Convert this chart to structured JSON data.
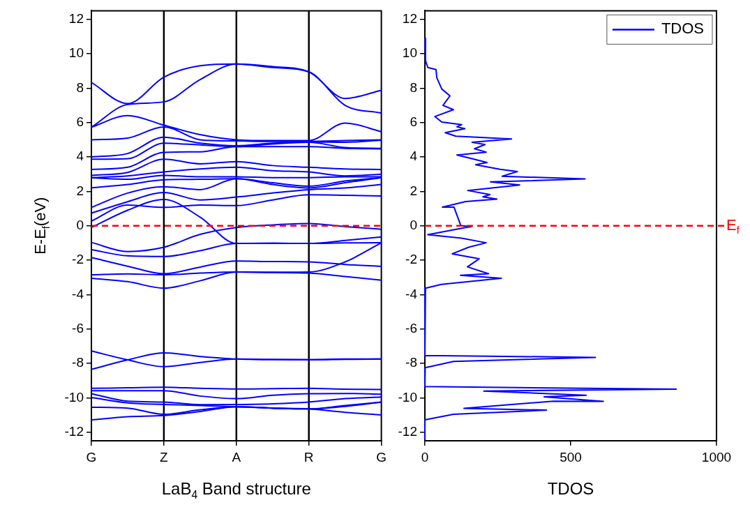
{
  "chart_data": [
    {
      "type": "line",
      "xlabel": "LaB$_{4}$ Band structure",
      "ylabel": "E-E$_{f}$(eV)",
      "categories": [
        "G",
        null,
        "Z",
        null,
        "A",
        null,
        "R",
        null,
        "G"
      ],
      "ylim": [
        -12.5,
        12.5
      ],
      "yticks": [
        -12,
        -10,
        -8,
        -6,
        -4,
        -2,
        0,
        2,
        4,
        6,
        8,
        10,
        12
      ],
      "ref_lines": [
        {
          "axis": "x",
          "value": "Z",
          "color": "#000000"
        },
        {
          "axis": "x",
          "value": "A",
          "color": "#000000"
        },
        {
          "axis": "x",
          "value": "R",
          "color": "#000000"
        },
        {
          "axis": "y",
          "value": 0,
          "color": "#ff0000",
          "line_style": "dashed"
        }
      ],
      "series": [
        {
          "color": "#0000ff",
          "values": [
            -11.29,
            -11.1,
            -11.03,
            -10.8,
            -10.52,
            -10.6,
            -10.65,
            -10.45,
            -10.25
          ]
        },
        {
          "color": "#0000ff",
          "values": [
            -10.55,
            -10.6,
            -10.96,
            -10.7,
            -10.52,
            -10.6,
            -10.65,
            -10.85,
            -10.99
          ]
        },
        {
          "color": "#0000ff",
          "values": [
            -9.99,
            -10.3,
            -10.39,
            -10.45,
            -10.52,
            -10.6,
            -10.65,
            -10.5,
            -10.25
          ]
        },
        {
          "color": "#0000ff",
          "values": [
            -9.76,
            -10.2,
            -10.25,
            -10.4,
            -10.39,
            -10.35,
            -10.25,
            -10.05,
            -9.96
          ]
        },
        {
          "color": "#0000ff",
          "values": [
            -9.59,
            -9.59,
            -9.59,
            -9.9,
            -10.05,
            -9.85,
            -9.76,
            -9.75,
            -9.79
          ]
        },
        {
          "color": "#0000ff",
          "values": [
            -9.45,
            -9.42,
            -9.39,
            -9.45,
            -9.49,
            -9.47,
            -9.45,
            -9.5,
            -9.52
          ]
        },
        {
          "color": "#0000ff",
          "values": [
            -8.35,
            -7.8,
            -7.39,
            -7.6,
            -7.75,
            -7.78,
            -7.79,
            -7.75,
            -7.75
          ]
        },
        {
          "color": "#0000ff",
          "values": [
            -7.28,
            -7.8,
            -8.19,
            -7.95,
            -7.75,
            -7.78,
            -7.79,
            -7.77,
            -7.75
          ]
        },
        {
          "color": "#0000ff",
          "values": [
            -3.05,
            -3.25,
            -3.63,
            -3.2,
            -2.69,
            -2.72,
            -2.75,
            -2.95,
            -3.16
          ]
        },
        {
          "color": "#0000ff",
          "values": [
            -2.85,
            -2.8,
            -2.85,
            -2.75,
            -2.69,
            -2.7,
            -2.69,
            -2.1,
            -0.99
          ]
        },
        {
          "color": "#0000ff",
          "values": [
            -1.85,
            -2.35,
            -2.79,
            -2.4,
            -2.05,
            -2.08,
            -2.1,
            -2.25,
            -2.36
          ]
        },
        {
          "color": "#0000ff",
          "values": [
            -1.39,
            -1.75,
            -1.79,
            -1.45,
            -1.03,
            -1.02,
            -1.03,
            -0.85,
            -0.65
          ]
        },
        {
          "color": "#0000ff",
          "values": [
            -0.97,
            -1.5,
            -1.25,
            -0.5,
            -0.1,
            0.05,
            0.13,
            -0.05,
            -0.2
          ]
        },
        {
          "color": "#0000ff",
          "values": [
            -0.1,
            0.9,
            1.53,
            0.5,
            -1.03,
            -1.02,
            -1.03,
            -1.0,
            -0.99
          ]
        },
        {
          "color": "#0000ff",
          "values": [
            0.27,
            1.2,
            1.07,
            1.2,
            1.17,
            1.5,
            1.8,
            1.77,
            1.73
          ]
        },
        {
          "color": "#0000ff",
          "values": [
            0.73,
            1.4,
            1.93,
            1.5,
            1.67,
            1.9,
            2.1,
            2.2,
            2.4
          ]
        },
        {
          "color": "#0000ff",
          "values": [
            1.07,
            1.9,
            2.27,
            2.1,
            2.73,
            2.4,
            2.2,
            2.5,
            2.8
          ]
        },
        {
          "color": "#0000ff",
          "values": [
            2.2,
            2.4,
            2.67,
            2.7,
            2.73,
            2.5,
            2.3,
            2.6,
            2.8
          ]
        },
        {
          "color": "#0000ff",
          "values": [
            2.8,
            2.7,
            2.93,
            2.85,
            2.85,
            2.8,
            2.8,
            2.85,
            2.85
          ]
        },
        {
          "color": "#0000ff",
          "values": [
            2.8,
            2.9,
            3.13,
            3.3,
            3.4,
            3.2,
            3.13,
            2.9,
            3.0
          ]
        },
        {
          "color": "#0000ff",
          "values": [
            2.93,
            3.1,
            3.87,
            3.6,
            3.73,
            3.5,
            3.4,
            3.3,
            3.27
          ]
        },
        {
          "color": "#0000ff",
          "values": [
            3.27,
            3.4,
            4.27,
            4.3,
            4.6,
            4.6,
            4.6,
            4.5,
            4.47
          ]
        },
        {
          "color": "#0000ff",
          "values": [
            3.87,
            3.9,
            4.8,
            4.7,
            4.6,
            4.75,
            4.85,
            4.55,
            4.5
          ]
        },
        {
          "color": "#0000ff",
          "values": [
            4.0,
            4.2,
            5.15,
            4.8,
            4.65,
            4.8,
            4.87,
            4.85,
            4.97
          ]
        },
        {
          "color": "#0000ff",
          "values": [
            5.0,
            5.1,
            5.75,
            5.0,
            4.93,
            4.9,
            4.9,
            4.95,
            5.0
          ]
        },
        {
          "color": "#0000ff",
          "values": [
            5.73,
            6.4,
            5.85,
            5.3,
            5.0,
            4.95,
            4.95,
            5.97,
            5.47
          ]
        },
        {
          "color": "#0000ff",
          "values": [
            5.73,
            7.05,
            7.2,
            8.5,
            9.4,
            9.2,
            8.95,
            7.0,
            6.55
          ]
        },
        {
          "color": "#0000ff",
          "values": [
            8.33,
            7.1,
            8.64,
            9.3,
            9.4,
            9.25,
            8.95,
            7.4,
            7.87
          ]
        }
      ]
    },
    {
      "type": "line",
      "xlabel": "TDOS",
      "xlim": [
        0,
        1000
      ],
      "xticks": [
        0,
        500,
        1000
      ],
      "ylim": [
        -12.5,
        12.5
      ],
      "yticks": [
        -12,
        -10,
        -8,
        -6,
        -4,
        -2,
        0,
        2,
        4,
        6,
        8,
        10,
        12
      ],
      "legend": "top right",
      "ref_lines": [
        {
          "axis": "y",
          "value": 0,
          "label": "E$_{f}$",
          "color": "#ff0000",
          "line_style": "dashed"
        }
      ],
      "series": [
        {
          "name": "TDOS",
          "color": "#0000ff",
          "x": [
            0,
            2,
            10,
            38,
            41,
            58,
            86,
            62,
            98,
            34,
            58,
            126,
            110,
            137,
            70,
            106,
            297,
            162,
            206,
            170,
            210,
            110,
            166,
            213,
            174,
            258,
            317,
            265,
            549,
            225,
            325,
            147,
            223,
            199,
            247,
            140,
            60,
            100,
            123,
            159,
            146,
            10,
            126,
            210,
            150,
            94,
            186,
            146,
            218,
            122,
            262,
            57,
            2,
            0,
            0,
            58,
            585,
            98,
            1,
            0,
            862,
            202,
            553,
            409,
            612,
            441,
            134,
            417,
            98,
            0,
            0
          ],
          "values": [
            10.9,
            9.6,
            9.2,
            9.08,
            8.6,
            7.95,
            7.55,
            7.0,
            6.75,
            6.35,
            6.03,
            5.88,
            5.75,
            5.64,
            5.41,
            5.21,
            5.05,
            4.85,
            4.72,
            4.48,
            4.28,
            4.11,
            3.88,
            3.68,
            3.55,
            3.28,
            3.15,
            2.88,
            2.72,
            2.55,
            2.37,
            2.05,
            1.81,
            1.68,
            1.55,
            1.41,
            1.08,
            1.08,
            0.01,
            -0.05,
            -0.08,
            -0.52,
            -0.72,
            -0.99,
            -1.25,
            -1.63,
            -1.92,
            -2.39,
            -2.79,
            -2.88,
            -3.05,
            -3.41,
            -3.63,
            -7.5,
            -7.55,
            -7.55,
            -7.65,
            -7.89,
            -8.25,
            -9.35,
            -9.5,
            -9.61,
            -9.85,
            -9.95,
            -10.21,
            -10.2,
            -10.61,
            -10.72,
            -10.96,
            -11.28,
            -12.4
          ]
        }
      ]
    }
  ]
}
